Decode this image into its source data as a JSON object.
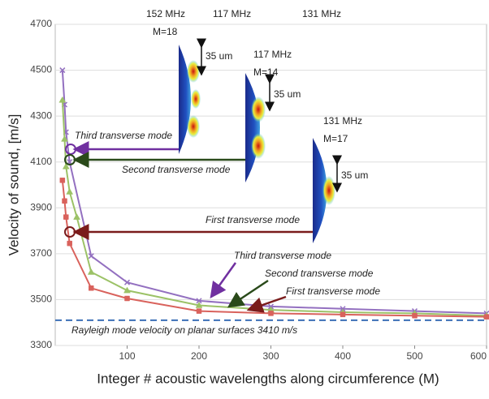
{
  "chart_data": {
    "type": "line",
    "xlabel": "Integer # acoustic wavelengths along circumference (M)",
    "ylabel": "Velocity of sound, [m/s]",
    "xlim": [
      0,
      600
    ],
    "xticks": [
      100,
      200,
      300,
      400,
      500,
      600
    ],
    "ylim": [
      3300,
      4700
    ],
    "yticks": [
      3300,
      3500,
      3700,
      3900,
      4100,
      4300,
      4500,
      4700
    ],
    "grid": true,
    "series": [
      {
        "color": "#9370c0",
        "marker": "x",
        "x": [
          10,
          13,
          15,
          20,
          50,
          100,
          200,
          300,
          400,
          500,
          600
        ],
        "values": [
          4500,
          4350,
          4230,
          4100,
          3690,
          3575,
          3495,
          3470,
          3460,
          3450,
          3440
        ]
      },
      {
        "color": "#9cc267",
        "marker": "triangle",
        "x": [
          10,
          13,
          15,
          20,
          30,
          50,
          100,
          200,
          300,
          400,
          500,
          600
        ],
        "values": [
          4370,
          4200,
          4080,
          3970,
          3860,
          3620,
          3540,
          3475,
          3455,
          3445,
          3440,
          3430
        ]
      },
      {
        "color": "#d9625c",
        "marker": "square",
        "x": [
          10,
          13,
          15,
          20,
          50,
          100,
          200,
          300,
          400,
          500,
          600
        ],
        "values": [
          4020,
          3930,
          3860,
          3745,
          3550,
          3505,
          3450,
          3440,
          3435,
          3430,
          3425
        ]
      }
    ],
    "reference_line": {
      "value": 3410,
      "color": "#3b6fb6"
    },
    "annotations": [
      "152 MHz",
      "117 MHz",
      "131 MHz",
      "M=18",
      "117 MHz",
      "M=14",
      "131 MHz",
      "M=17",
      "35 um",
      "35 um",
      "35 um",
      "Third transverse mode",
      "Second transverse mode",
      "First transverse mode",
      "Third transverse mode",
      "Second transverse mode",
      "First transverse mode",
      "Rayleigh mode velocity on planar surfaces  3410 m/s"
    ]
  }
}
